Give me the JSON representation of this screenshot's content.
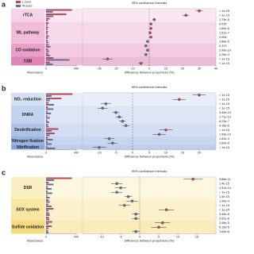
{
  "panels": [
    {
      "letter": "a",
      "title": "95% confidence intervals",
      "x_label": "Difference between proportions (%)",
      "bar_label": "Abundance",
      "legend": [
        {
          "name": "L-seed",
          "color": "#b8475a"
        },
        {
          "name": "W-seed",
          "color": "#5f7398"
        }
      ],
      "xlim": [
        -40,
        40
      ],
      "xticks": [
        -30,
        -20,
        -10,
        0,
        10,
        20,
        30,
        40
      ],
      "barlim": [
        0,
        490
      ],
      "barticks": [
        0,
        490
      ],
      "groups": [
        {
          "label": "rTCA",
          "color": "#f6d3e6",
          "rows": [
            {
              "l": 420,
              "w": 110,
              "diff": 30,
              "ci": 2,
              "p": "< 1e-15"
            },
            {
              "l": 330,
              "w": 120,
              "diff": 22,
              "ci": 2,
              "p": "< 1e-15"
            },
            {
              "l": 60,
              "w": 30,
              "diff": 3,
              "ci": 1,
              "p": "1.79e-6"
            }
          ]
        },
        {
          "label": "WL pathway",
          "color": "#f0bcd9",
          "rows": [
            {
              "l": 40,
              "w": 25,
              "diff": 1,
              "ci": 0.8,
              "p": "0.035"
            },
            {
              "l": 35,
              "w": 22,
              "diff": 1,
              "ci": 0.8,
              "p": "1.86e-6"
            },
            {
              "l": 30,
              "w": 25,
              "diff": 0.5,
              "ci": 0.8,
              "p": "1.51e-7"
            },
            {
              "l": 45,
              "w": 30,
              "diff": 1,
              "ci": 0.8,
              "p": "0.008"
            },
            {
              "l": 25,
              "w": 40,
              "diff": -1,
              "ci": 0.8,
              "p": "1.88e-6"
            }
          ]
        },
        {
          "label": "CO oxidation",
          "color": "#e99fc8",
          "rows": [
            {
              "l": 40,
              "w": 70,
              "diff": -2,
              "ci": 1,
              "p": "0.370"
            },
            {
              "l": 30,
              "w": 50,
              "diff": -1,
              "ci": 1,
              "p": "2.96e-10"
            },
            {
              "l": 35,
              "w": 65,
              "diff": -2,
              "ci": 1,
              "p": "2.26e-4"
            }
          ]
        },
        {
          "label": "CBB",
          "color": "#df86b8",
          "rows": [
            {
              "l": 120,
              "w": 380,
              "diff": -25,
              "ci": 3,
              "p": "< 1e-15"
            },
            {
              "l": 60,
              "w": 110,
              "diff": -5,
              "ci": 1.5,
              "p": "< 1e-15"
            }
          ]
        }
      ]
    },
    {
      "letter": "b",
      "title": "95% confidence intervals",
      "x_label": "Difference between proportions (%)",
      "bar_label": "Abundance",
      "legend": [],
      "xlim": [
        -15,
        25
      ],
      "xticks": [
        -10,
        -5,
        0,
        5,
        10,
        15,
        20
      ],
      "barlim": [
        0,
        490
      ],
      "barticks": [
        0,
        490
      ],
      "groups": [
        {
          "label": "NO₂ reduction",
          "color": "#d6e0f3",
          "rows": [
            {
              "l": 430,
              "w": 90,
              "diff": 20,
              "ci": 2,
              "p": "< 1e-15"
            },
            {
              "l": 250,
              "w": 60,
              "diff": 14,
              "ci": 2,
              "p": "< 1e-15"
            },
            {
              "l": 40,
              "w": 130,
              "diff": -8,
              "ci": 1.5,
              "p": "< 1e-15"
            }
          ]
        },
        {
          "label": "DNRA",
          "color": "#c3d2ee",
          "rows": [
            {
              "l": 30,
              "w": 120,
              "diff": -9,
              "ci": 1.5,
              "p": "< 1e-15"
            },
            {
              "l": 25,
              "w": 80,
              "diff": -5,
              "ci": 1,
              "p": "3.45e-10"
            },
            {
              "l": 20,
              "w": 60,
              "diff": -4,
              "ci": 1,
              "p": "1.71e-12"
            },
            {
              "l": 20,
              "w": 50,
              "diff": -3,
              "ci": 1,
              "p": "6.23e-7"
            }
          ]
        },
        {
          "label": "Denitrification",
          "color": "#aec2e8",
          "rows": [
            {
              "l": 30,
              "w": 45,
              "diff": -2,
              "ci": 1,
              "p": "4.18e-6"
            },
            {
              "l": 200,
              "w": 90,
              "diff": 10,
              "ci": 2,
              "p": "< 1e-15"
            },
            {
              "l": 140,
              "w": 60,
              "diff": 8,
              "ci": 2,
              "p": "1.99e-10"
            }
          ]
        },
        {
          "label": "Nitrogen fixation",
          "color": "#9ab3e1",
          "rows": [
            {
              "l": 30,
              "w": 110,
              "diff": -7,
              "ci": 1.5,
              "p": "1.81e-4"
            },
            {
              "l": 25,
              "w": 90,
              "diff": -6,
              "ci": 1.5,
              "p": "1.59e-8"
            }
          ]
        },
        {
          "label": "Nitrification",
          "color": "#87a4da",
          "rows": [
            {
              "l": 20,
              "w": 150,
              "diff": -10,
              "ci": 2,
              "p": "< 1e-15"
            }
          ]
        }
      ]
    },
    {
      "letter": "c",
      "title": "95% confidence intervals",
      "x_label": "Difference between proportions (%)",
      "bar_label": "Abundance",
      "legend": [],
      "xlim": [
        -15,
        20
      ],
      "xticks": [
        -10,
        -5,
        0,
        5,
        10,
        15
      ],
      "barlim": [
        0,
        490
      ],
      "barticks": [
        0,
        490
      ],
      "groups": [
        {
          "label": "DSR",
          "color": "#fbf0c4",
          "rows": [
            {
              "l": 420,
              "w": 130,
              "diff": 14,
              "ci": 2.5,
              "p": "3.88e-11"
            },
            {
              "l": 40,
              "w": 120,
              "diff": -6,
              "ci": 1.5,
              "p": "1.4e-15"
            },
            {
              "l": 30,
              "w": 90,
              "diff": -5,
              "ci": 1.5,
              "p": "4.31e-14"
            },
            {
              "l": 25,
              "w": 100,
              "diff": -6,
              "ci": 1.5,
              "p": "< 1e-15"
            },
            {
              "l": 20,
              "w": 60,
              "diff": -3,
              "ci": 1,
              "p": "1.4e-15"
            }
          ]
        },
        {
          "label": "SOX system",
          "color": "#f8e6a3",
          "rows": [
            {
              "l": 40,
              "w": 60,
              "diff": -2,
              "ci": 1.5,
              "p": "1.99e-4"
            },
            {
              "l": 35,
              "w": 90,
              "diff": -4,
              "ci": 1.5,
              "p": "< 1e-15"
            },
            {
              "l": 120,
              "w": 40,
              "diff": 7,
              "ci": 2,
              "p": "< 1e-15"
            },
            {
              "l": 50,
              "w": 60,
              "diff": -1,
              "ci": 1,
              "p": "3.46e-6"
            },
            {
              "l": 45,
              "w": 55,
              "diff": -1,
              "ci": 1,
              "p": "3.52e-8"
            }
          ]
        },
        {
          "label": "Sulfide oxidation",
          "color": "#f4db82",
          "rows": [
            {
              "l": 100,
              "w": 40,
              "diff": 6,
              "ci": 2,
              "p": "3.48e-5"
            },
            {
              "l": 90,
              "w": 40,
              "diff": 5,
              "ci": 2,
              "p": "6.16e-5"
            },
            {
              "l": 30,
              "w": 40,
              "diff": -1,
              "ci": 1,
              "p": "1.64e-8"
            }
          ]
        }
      ]
    }
  ]
}
